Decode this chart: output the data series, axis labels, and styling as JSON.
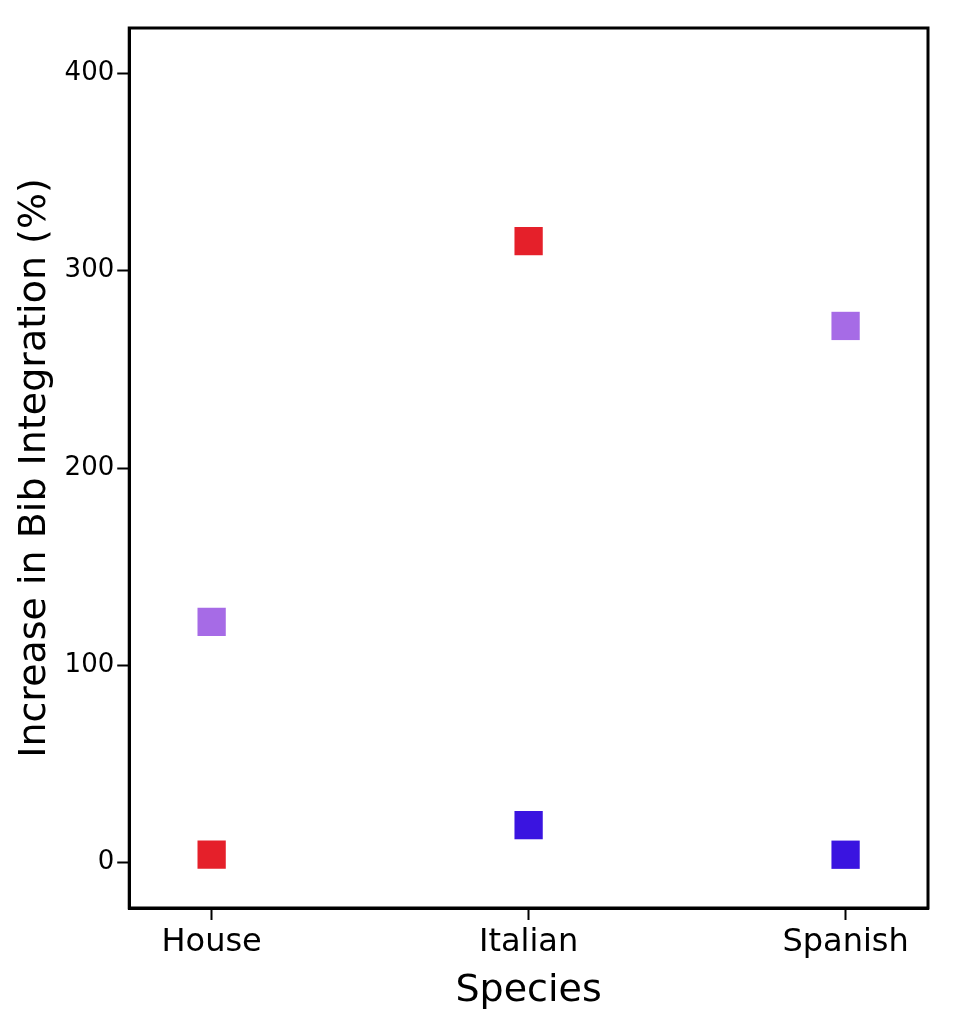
{
  "chart_data": {
    "type": "scatter",
    "xlabel": "Species",
    "ylabel": "Increase in Bib Integration (%)",
    "categories": [
      "House",
      "Italian",
      "Spanish"
    ],
    "series": [
      {
        "color": "#a66be6",
        "values": [
          122,
          null,
          272
        ]
      },
      {
        "color": "#e5202a",
        "values": [
          4,
          315,
          null
        ]
      },
      {
        "color": "#3a14e0",
        "values": [
          null,
          19,
          4
        ]
      }
    ],
    "ylim": [
      -23,
      423
    ],
    "yticks": [
      0,
      100,
      200,
      300,
      400
    ],
    "grid": false,
    "legend": false,
    "marker": "square"
  }
}
